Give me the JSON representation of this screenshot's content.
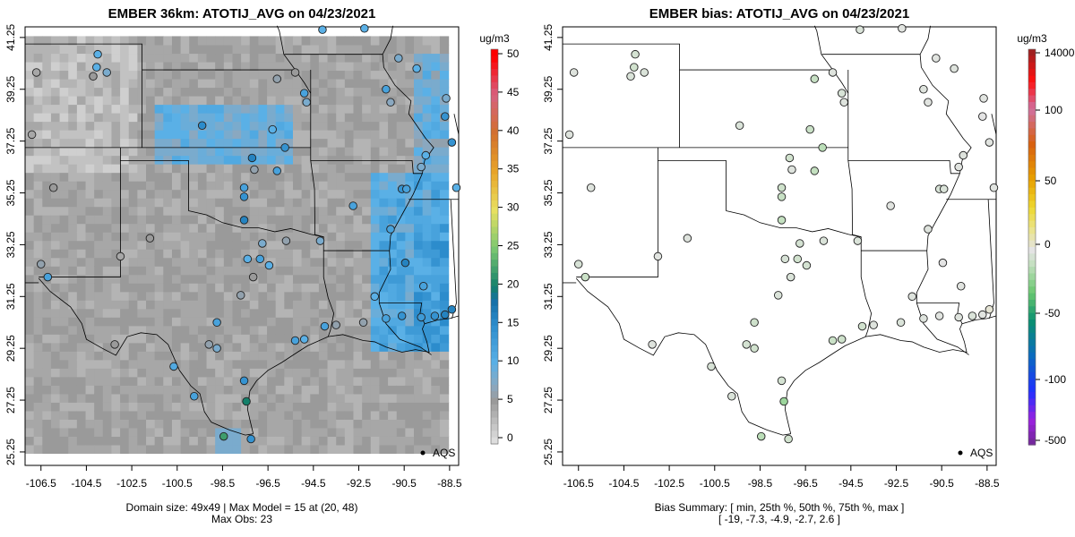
{
  "panels": [
    {
      "title": "EMBER 36km: ATOTIJ_AVG on 04/23/2021",
      "footer": [
        "Domain size: 49x49 | Max Model = 15 at (20, 48)",
        "Max Obs: 23"
      ],
      "colorbar_unit": "ug/m3",
      "colorbar_ticks": [
        "50",
        "45",
        "40",
        "35",
        "30",
        "25",
        "20",
        "15",
        "10",
        "5",
        "0"
      ],
      "legend": "AQS"
    },
    {
      "title": "EMBER bias: ATOTIJ_AVG on 04/23/2021",
      "footer": [
        "Bias Summary: [ min, 25th %, 50th %, 75th %, max ]",
        "[ -19,   -7.3,   -4.9,   -2.7,   2.6 ]"
      ],
      "colorbar_unit": "ug/m3",
      "colorbar_ticks": [
        "14000",
        "100",
        "50",
        "0",
        "-50",
        "-100",
        "-500"
      ],
      "legend": "AQS"
    }
  ],
  "chart_data": {
    "type": "scatter",
    "xlabel": "",
    "ylabel": "",
    "x_ticks": [
      "-106.5",
      "-104.5",
      "-102.5",
      "-100.5",
      "-98.5",
      "-96.5",
      "-94.5",
      "-92.5",
      "-90.5",
      "-88.5"
    ],
    "y_ticks": [
      "41.25",
      "39.25",
      "37.25",
      "35.25",
      "33.25",
      "31.25",
      "29.25",
      "27.25",
      "25.25"
    ],
    "xlim": [
      -107.2,
      -88.1
    ],
    "ylim": [
      24.73,
      41.66
    ],
    "model_max": 15,
    "obs_max": 23,
    "bias_summary": {
      "min": -19,
      "p25": -7.3,
      "p50": -4.9,
      "p75": -2.7,
      "max": 2.6
    },
    "stations": [
      [
        -105.95,
        35.45,
        5,
        -2
      ],
      [
        -104.05,
        40.1,
        10,
        -6
      ],
      [
        -104.0,
        40.6,
        10,
        -5
      ],
      [
        -104.2,
        39.75,
        5,
        -3
      ],
      [
        -106.7,
        39.9,
        4,
        -2
      ],
      [
        -106.9,
        37.5,
        4,
        -2
      ],
      [
        -106.5,
        32.5,
        6,
        -4
      ],
      [
        -106.2,
        32.0,
        12,
        -8
      ],
      [
        -103.0,
        32.8,
        4,
        -1
      ],
      [
        -101.7,
        33.5,
        5,
        -2
      ],
      [
        -99.4,
        37.85,
        15,
        -3
      ],
      [
        -97.2,
        36.6,
        16,
        -6
      ],
      [
        -97.1,
        36.15,
        6,
        -2
      ],
      [
        -97.55,
        35.45,
        12,
        -7
      ],
      [
        -97.55,
        35.1,
        14,
        -9
      ],
      [
        -97.55,
        34.2,
        16,
        -10
      ],
      [
        -96.1,
        36.1,
        12,
        -10
      ],
      [
        -95.75,
        37.0,
        14,
        -12
      ],
      [
        -96.3,
        37.7,
        10,
        -8
      ],
      [
        -94.9,
        39.1,
        12,
        -4
      ],
      [
        -94.8,
        38.75,
        8,
        -2
      ],
      [
        -96.1,
        39.65,
        6,
        -9
      ],
      [
        -95.3,
        39.9,
        5,
        -2
      ],
      [
        -94.1,
        41.55,
        10,
        -3
      ],
      [
        -92.75,
        34.75,
        12,
        -1
      ],
      [
        -94.2,
        33.4,
        8,
        -3
      ],
      [
        -95.7,
        33.4,
        6,
        -3
      ],
      [
        -96.75,
        33.3,
        8,
        -5
      ],
      [
        -96.85,
        32.7,
        12,
        -6
      ],
      [
        -96.45,
        32.45,
        10,
        -5
      ],
      [
        -97.4,
        32.7,
        10,
        -4
      ],
      [
        -97.15,
        32.0,
        5,
        -3
      ],
      [
        -97.7,
        31.3,
        6,
        -3
      ],
      [
        -98.75,
        30.25,
        12,
        -7
      ],
      [
        -98.75,
        29.25,
        8,
        -6
      ],
      [
        -99.1,
        29.4,
        6,
        -5
      ],
      [
        -100.65,
        28.55,
        11,
        -4
      ],
      [
        -99.75,
        27.4,
        12,
        -3
      ],
      [
        -97.55,
        28.0,
        14,
        -5
      ],
      [
        -97.45,
        27.2,
        20,
        -19
      ],
      [
        -98.45,
        25.85,
        22,
        -12
      ],
      [
        -97.25,
        25.75,
        14,
        -6
      ],
      [
        -103.25,
        29.4,
        5,
        -2
      ],
      [
        -95.3,
        29.55,
        12,
        -8
      ],
      [
        -94.9,
        29.6,
        10,
        -7
      ],
      [
        -94.0,
        30.1,
        12,
        -6
      ],
      [
        -93.5,
        30.15,
        6,
        -2
      ],
      [
        -92.3,
        30.25,
        6,
        -3
      ],
      [
        -91.3,
        30.4,
        12,
        -2
      ],
      [
        -90.6,
        30.5,
        14,
        -1
      ],
      [
        -89.75,
        30.45,
        13,
        -2
      ],
      [
        -89.15,
        30.5,
        14,
        -3
      ],
      [
        -88.7,
        30.55,
        16,
        -1
      ],
      [
        -88.4,
        30.75,
        16,
        2.6
      ],
      [
        -89.65,
        31.65,
        12,
        -1
      ],
      [
        -90.45,
        32.55,
        16,
        0
      ],
      [
        -91.1,
        33.85,
        12,
        -2
      ],
      [
        -90.6,
        35.4,
        14,
        -4
      ],
      [
        -90.4,
        35.4,
        12,
        -3
      ],
      [
        -89.75,
        36.25,
        8,
        -1
      ],
      [
        -89.55,
        36.7,
        10,
        -2
      ],
      [
        -88.7,
        38.2,
        14,
        0
      ],
      [
        -88.65,
        38.9,
        8,
        -1
      ],
      [
        -89.95,
        40.05,
        10,
        -2
      ],
      [
        -90.75,
        40.45,
        8,
        -1
      ],
      [
        -91.3,
        39.25,
        12,
        -2
      ],
      [
        -91.1,
        38.75,
        7,
        -1
      ],
      [
        -92.25,
        41.6,
        10,
        -1
      ],
      [
        -88.2,
        35.45,
        10,
        -1
      ],
      [
        -88.4,
        37.2,
        14,
        -1
      ],
      [
        -91.8,
        31.25,
        10,
        -2
      ],
      [
        -103.6,
        39.9,
        8,
        -3
      ]
    ]
  }
}
